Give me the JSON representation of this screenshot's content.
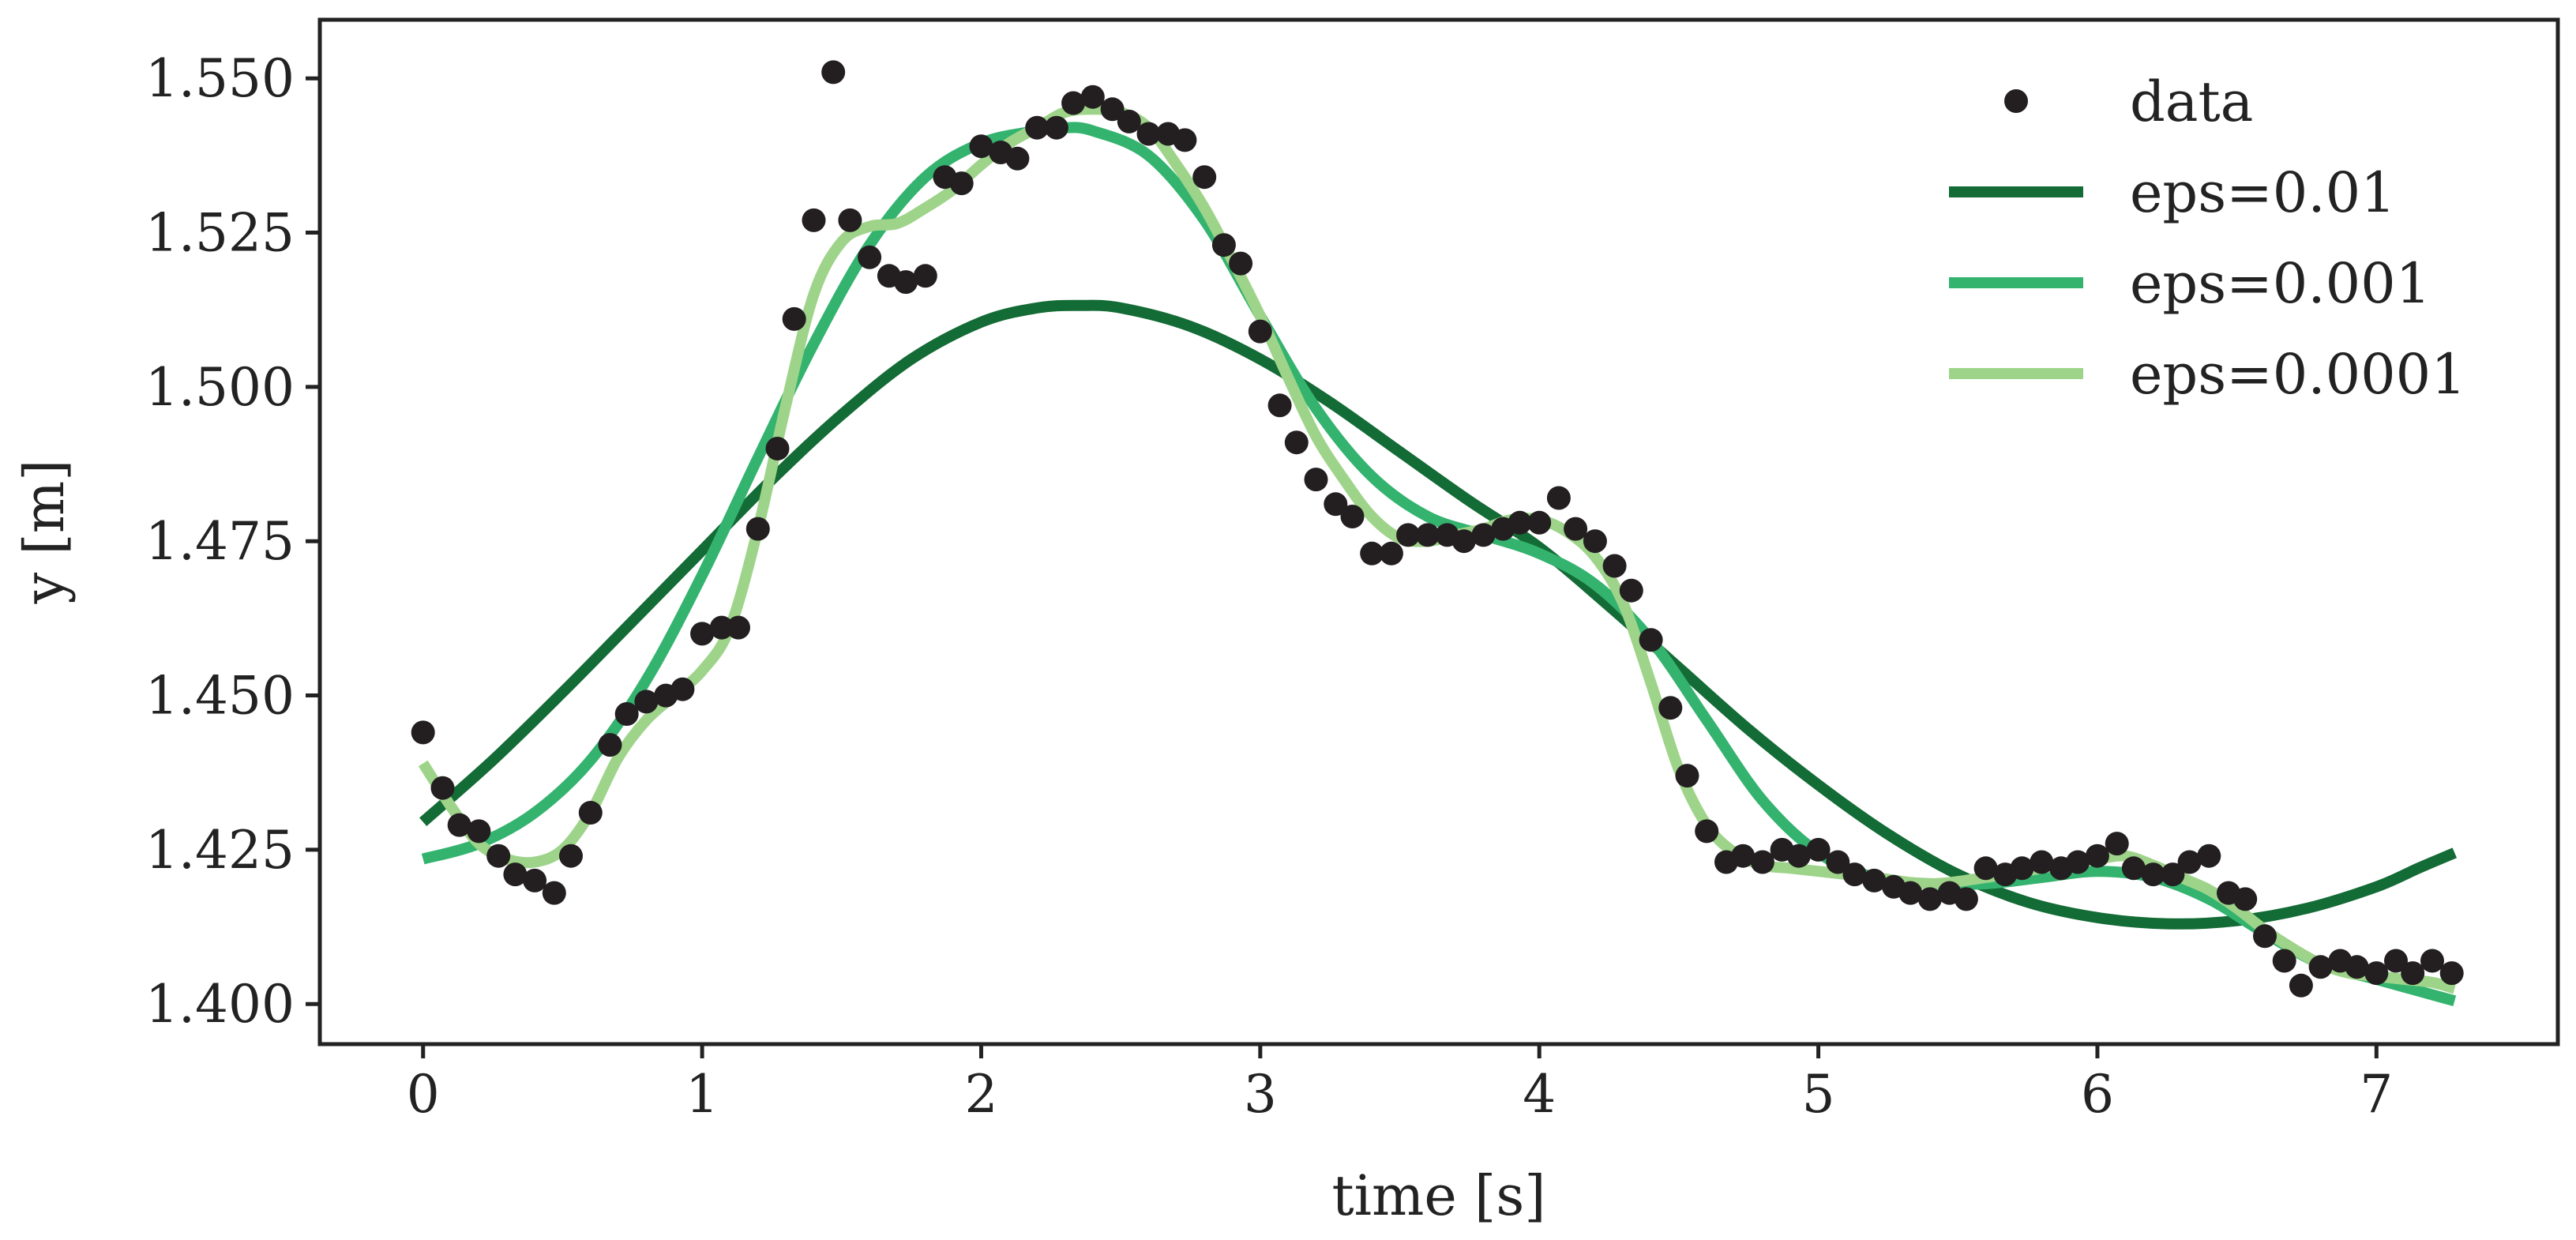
{
  "chart_data": {
    "type": "line",
    "title": "",
    "xlabel": "time [s]",
    "ylabel": "y [m]",
    "xlim": [
      -0.37,
      7.65
    ],
    "ylim": [
      1.3935,
      1.5595
    ],
    "xticks": [
      0,
      1,
      2,
      3,
      4,
      5,
      6,
      7
    ],
    "yticks": [
      1.4,
      1.425,
      1.45,
      1.475,
      1.5,
      1.525,
      1.55
    ],
    "ytick_labels": [
      "1.400",
      "1.425",
      "1.450",
      "1.475",
      "1.500",
      "1.525",
      "1.550"
    ],
    "grid": false,
    "legend_position": "top-right",
    "legend": [
      "data",
      "eps=0.01",
      "eps=0.001",
      "eps=0.0001"
    ],
    "colors": {
      "data": "#231f20",
      "eps_0.01": "#136b35",
      "eps_0.001": "#34b36f",
      "eps_0.0001": "#9ed48a"
    },
    "scatter": {
      "name": "data",
      "x": [
        0.0,
        0.07,
        0.13,
        0.2,
        0.27,
        0.33,
        0.4,
        0.47,
        0.53,
        0.6,
        0.67,
        0.73,
        0.8,
        0.87,
        0.93,
        1.0,
        1.07,
        1.13,
        1.2,
        1.27,
        1.33,
        1.4,
        1.47,
        1.53,
        1.6,
        1.67,
        1.73,
        1.8,
        1.87,
        1.93,
        2.0,
        2.07,
        2.13,
        2.2,
        2.27,
        2.33,
        2.4,
        2.47,
        2.53,
        2.6,
        2.67,
        2.73,
        2.8,
        2.87,
        2.93,
        3.0,
        3.07,
        3.13,
        3.2,
        3.27,
        3.33,
        3.4,
        3.47,
        3.53,
        3.6,
        3.67,
        3.73,
        3.8,
        3.87,
        3.93,
        4.0,
        4.07,
        4.13,
        4.2,
        4.27,
        4.33,
        4.4,
        4.47,
        4.53,
        4.6,
        4.67,
        4.73,
        4.8,
        4.87,
        4.93,
        5.0,
        5.07,
        5.13,
        5.2,
        5.27,
        5.33,
        5.4,
        5.47,
        5.53,
        5.6,
        5.67,
        5.73,
        5.8,
        5.87,
        5.93,
        6.0,
        6.07,
        6.13,
        6.2,
        6.27,
        6.33,
        6.4,
        6.47,
        6.53,
        6.6,
        6.67,
        6.73,
        6.8,
        6.87,
        6.93,
        7.0,
        7.07,
        7.13,
        7.2,
        7.27
      ],
      "y": [
        1.444,
        1.435,
        1.429,
        1.428,
        1.424,
        1.421,
        1.42,
        1.418,
        1.424,
        1.431,
        1.442,
        1.447,
        1.449,
        1.45,
        1.451,
        1.46,
        1.461,
        1.461,
        1.477,
        1.49,
        1.511,
        1.527,
        1.551,
        1.527,
        1.521,
        1.518,
        1.517,
        1.518,
        1.534,
        1.533,
        1.539,
        1.538,
        1.537,
        1.542,
        1.542,
        1.546,
        1.547,
        1.545,
        1.543,
        1.541,
        1.541,
        1.54,
        1.534,
        1.523,
        1.52,
        1.509,
        1.497,
        1.491,
        1.485,
        1.481,
        1.479,
        1.473,
        1.473,
        1.476,
        1.476,
        1.476,
        1.475,
        1.476,
        1.477,
        1.478,
        1.478,
        1.482,
        1.477,
        1.475,
        1.471,
        1.467,
        1.459,
        1.448,
        1.437,
        1.428,
        1.423,
        1.424,
        1.423,
        1.425,
        1.424,
        1.425,
        1.423,
        1.421,
        1.42,
        1.419,
        1.418,
        1.417,
        1.418,
        1.417,
        1.422,
        1.421,
        1.422,
        1.423,
        1.422,
        1.423,
        1.424,
        1.426,
        1.422,
        1.421,
        1.421,
        1.423,
        1.424,
        1.418,
        1.417,
        1.411,
        1.407,
        1.403,
        1.406,
        1.407,
        1.406,
        1.405,
        1.407,
        1.405,
        1.407,
        1.405
      ]
    },
    "series": [
      {
        "name": "eps=0.01",
        "x": [
          0.0,
          0.25,
          0.5,
          0.75,
          1.0,
          1.25,
          1.5,
          1.75,
          2.0,
          2.2,
          2.35,
          2.5,
          2.75,
          3.0,
          3.25,
          3.5,
          3.75,
          4.0,
          4.25,
          4.5,
          4.75,
          5.0,
          5.25,
          5.5,
          5.75,
          6.0,
          6.25,
          6.5,
          6.75,
          7.0,
          7.15,
          7.28
        ],
        "y": [
          1.4295,
          1.4395,
          1.4505,
          1.462,
          1.4735,
          1.485,
          1.4955,
          1.5045,
          1.5105,
          1.5128,
          1.5132,
          1.5128,
          1.5098,
          1.5045,
          1.4975,
          1.4895,
          1.4815,
          1.474,
          1.4645,
          1.4545,
          1.4445,
          1.4355,
          1.4275,
          1.421,
          1.4165,
          1.414,
          1.413,
          1.4135,
          1.4155,
          1.419,
          1.422,
          1.4245
        ]
      },
      {
        "name": "eps=0.001",
        "x": [
          0.0,
          0.2,
          0.4,
          0.6,
          0.8,
          1.0,
          1.2,
          1.4,
          1.6,
          1.8,
          2.0,
          2.2,
          2.3,
          2.4,
          2.6,
          2.8,
          3.0,
          3.2,
          3.4,
          3.6,
          3.8,
          4.0,
          4.2,
          4.4,
          4.6,
          4.8,
          5.0,
          5.2,
          5.4,
          5.6,
          5.8,
          6.0,
          6.2,
          6.4,
          6.6,
          6.8,
          7.0,
          7.2,
          7.28
        ],
        "y": [
          1.4235,
          1.426,
          1.431,
          1.4395,
          1.4525,
          1.4695,
          1.4885,
          1.507,
          1.523,
          1.534,
          1.5395,
          1.5415,
          1.542,
          1.5415,
          1.5375,
          1.527,
          1.5115,
          1.4965,
          1.4855,
          1.479,
          1.476,
          1.473,
          1.468,
          1.459,
          1.446,
          1.433,
          1.4245,
          1.4205,
          1.4195,
          1.4195,
          1.4205,
          1.4215,
          1.4205,
          1.417,
          1.4115,
          1.4065,
          1.404,
          1.4015,
          1.4005
        ]
      },
      {
        "name": "eps=0.0001",
        "x": [
          0.0,
          0.1,
          0.2,
          0.3,
          0.4,
          0.5,
          0.6,
          0.7,
          0.8,
          0.9,
          1.0,
          1.1,
          1.2,
          1.3,
          1.4,
          1.5,
          1.6,
          1.7,
          1.8,
          1.9,
          2.0,
          2.1,
          2.2,
          2.3,
          2.4,
          2.5,
          2.6,
          2.7,
          2.8,
          2.9,
          3.0,
          3.1,
          3.2,
          3.3,
          3.4,
          3.5,
          3.6,
          3.7,
          3.8,
          3.9,
          4.0,
          4.1,
          4.2,
          4.3,
          4.4,
          4.5,
          4.6,
          4.7,
          4.8,
          4.9,
          5.0,
          5.2,
          5.4,
          5.6,
          5.8,
          5.9,
          6.0,
          6.1,
          6.2,
          6.3,
          6.4,
          6.5,
          6.6,
          6.7,
          6.8,
          6.9,
          7.0,
          7.1,
          7.2,
          7.28
        ],
        "y": [
          1.439,
          1.432,
          1.426,
          1.4235,
          1.423,
          1.425,
          1.431,
          1.44,
          1.446,
          1.45,
          1.454,
          1.461,
          1.477,
          1.497,
          1.515,
          1.5235,
          1.526,
          1.5265,
          1.529,
          1.532,
          1.536,
          1.5395,
          1.542,
          1.5445,
          1.545,
          1.5445,
          1.542,
          1.536,
          1.529,
          1.5205,
          1.5115,
          1.5015,
          1.492,
          1.485,
          1.479,
          1.4755,
          1.475,
          1.476,
          1.477,
          1.4785,
          1.4785,
          1.4765,
          1.4725,
          1.465,
          1.452,
          1.438,
          1.429,
          1.4245,
          1.4225,
          1.422,
          1.4215,
          1.4205,
          1.4195,
          1.4205,
          1.422,
          1.423,
          1.4235,
          1.424,
          1.4225,
          1.4205,
          1.4185,
          1.4155,
          1.412,
          1.409,
          1.4065,
          1.405,
          1.4045,
          1.404,
          1.4035,
          1.4025
        ]
      }
    ]
  }
}
